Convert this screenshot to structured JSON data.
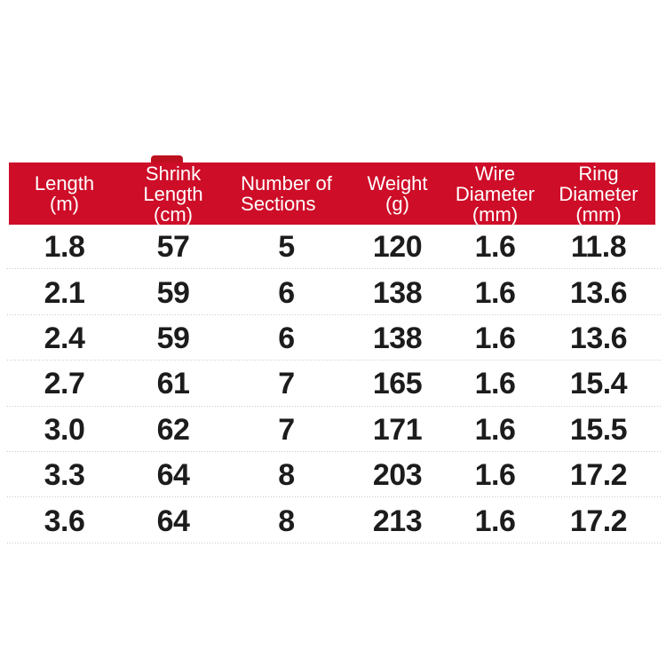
{
  "page": {
    "background": "#ffffff"
  },
  "colors": {
    "header_bg": "#ce0d28",
    "header_text": "#ffffff",
    "data_text": "#1c1c1c",
    "separator": "#c8c8c8",
    "smudge": "#bf1020"
  },
  "chart_data": {
    "type": "table",
    "title": "",
    "columns": [
      {
        "id": "length",
        "label": "Length (m)",
        "label_lines": [
          "Length",
          "(m)"
        ]
      },
      {
        "id": "shrink-length",
        "label": "Shrink Length (cm)",
        "label_lines": [
          "Shrink",
          "Length",
          "(cm)"
        ]
      },
      {
        "id": "sections",
        "label": "Number of Sections",
        "label_lines": [
          "Number of",
          "Sections"
        ]
      },
      {
        "id": "weight",
        "label": "Weight (g)",
        "label_lines": [
          "Weight",
          "(g)"
        ]
      },
      {
        "id": "wire-diameter",
        "label": "Wire Diameter (mm)",
        "label_lines": [
          "Wire",
          "Diameter",
          "(mm)"
        ]
      },
      {
        "id": "ring-diameter",
        "label": "Ring Diameter (mm)",
        "label_lines": [
          "Ring",
          "Diameter",
          "(mm)"
        ]
      }
    ],
    "rows": [
      [
        "1.8",
        "57",
        "5",
        "120",
        "1.6",
        "11.8"
      ],
      [
        "2.1",
        "59",
        "6",
        "138",
        "1.6",
        "13.6"
      ],
      [
        "2.4",
        "59",
        "6",
        "138",
        "1.6",
        "13.6"
      ],
      [
        "2.7",
        "61",
        "7",
        "165",
        "1.6",
        "15.4"
      ],
      [
        "3.0",
        "62",
        "7",
        "171",
        "1.6",
        "15.5"
      ],
      [
        "3.3",
        "64",
        "8",
        "203",
        "1.6",
        "17.2"
      ],
      [
        "3.6",
        "64",
        "8",
        "213",
        "1.6",
        "17.2"
      ]
    ]
  }
}
